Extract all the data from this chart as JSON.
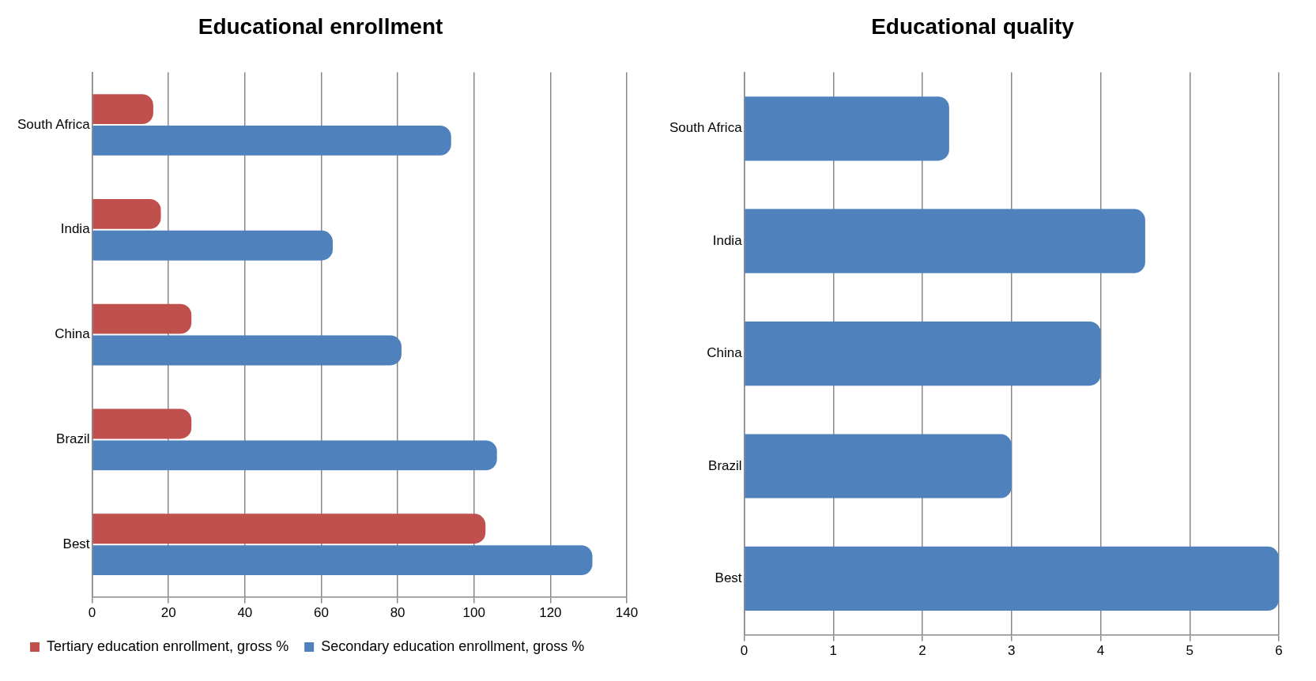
{
  "chart_data": [
    {
      "type": "bar",
      "title": "Educational enrollment",
      "orientation": "horizontal",
      "categories": [
        "South Africa",
        "India",
        "China",
        "Brazil",
        "Best"
      ],
      "series": [
        {
          "name": "Tertiary education enrollment, gross %",
          "color": "#c0504d",
          "values": [
            16,
            18,
            26,
            26,
            103
          ]
        },
        {
          "name": "Secondary education enrollment, gross %",
          "color": "#4f81bd",
          "values": [
            94,
            63,
            81,
            106,
            131
          ]
        }
      ],
      "xlim": [
        0,
        140
      ],
      "xticks": [
        0,
        20,
        40,
        60,
        80,
        100,
        120,
        140
      ],
      "grid": "x",
      "legend": "bottom"
    },
    {
      "type": "bar",
      "title": "Educational quality",
      "orientation": "horizontal",
      "categories": [
        "South Africa",
        "India",
        "China",
        "Brazil",
        "Best"
      ],
      "series": [
        {
          "color": "#4f81bd",
          "values": [
            2.3,
            4.5,
            4.0,
            3.0,
            6.0
          ]
        }
      ],
      "xlim": [
        0,
        6
      ],
      "xticks": [
        0,
        1,
        2,
        3,
        4,
        5,
        6
      ],
      "grid": "x"
    }
  ]
}
